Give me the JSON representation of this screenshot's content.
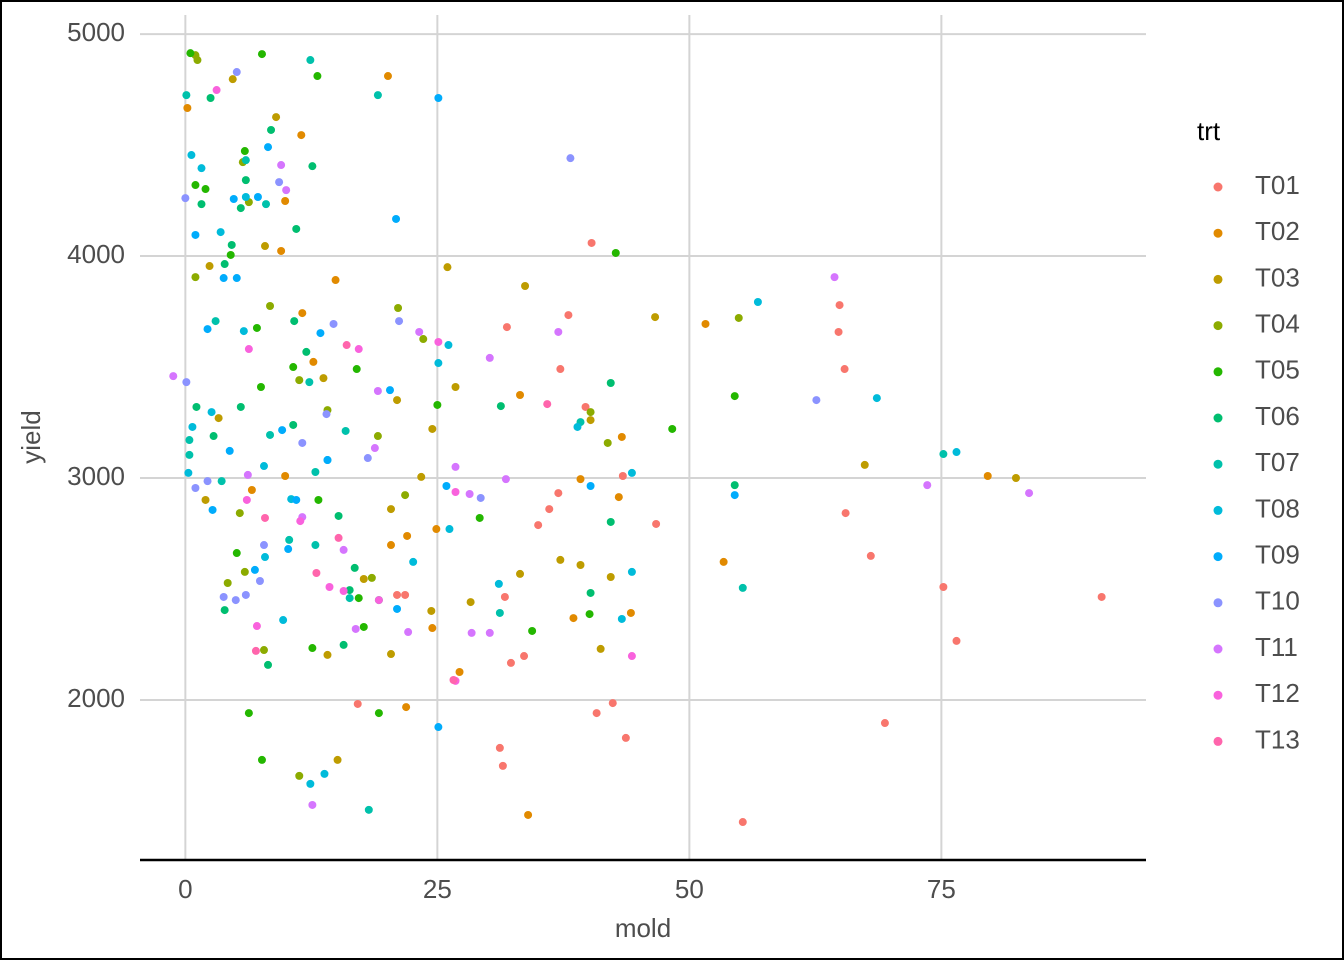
{
  "chart_data": {
    "type": "scatter",
    "x_label": "mold",
    "y_label": "yield",
    "legend_title": "trt",
    "legend_position": "right",
    "grid": true,
    "xlim": [
      -4.5,
      95.3
    ],
    "ylim": [
      1279,
      5086
    ],
    "xticks": [
      0,
      25,
      50,
      75
    ],
    "yticks": [
      2000,
      3000,
      4000,
      5000
    ],
    "series": [
      {
        "name": "T01",
        "color": "#F8766D",
        "x": [
          40.3,
          38,
          31.9,
          37.2,
          39.7,
          43.4,
          37,
          36.1,
          35,
          46.7,
          64.9,
          64.8,
          65.4,
          65.5,
          68,
          75.2,
          76.5,
          90.9,
          69.4,
          55.3,
          31.2,
          31.5,
          33.6,
          32.3,
          43.7,
          42.4,
          40.8,
          21.8,
          21,
          17.1,
          31.7
        ],
        "y": [
          4059,
          3734,
          3680,
          3491,
          3320,
          3009,
          2932,
          2860,
          2788,
          2793,
          3779,
          3658,
          3491,
          2842,
          2649,
          2509,
          2266,
          2464,
          1896,
          1450,
          1784,
          1703,
          2198,
          2167,
          1829,
          1986,
          1941,
          2473,
          2473,
          1982,
          2464
        ]
      },
      {
        "name": "T02",
        "color": "#E18A00",
        "x": [
          0.2,
          20.1,
          11.5,
          9.9,
          9.5,
          14.9,
          11.6,
          51.6,
          33.2,
          43.3,
          22,
          9.9,
          53.4,
          79.6,
          24.9,
          39.2,
          38.5,
          44.2,
          24.5,
          21.9,
          34,
          43,
          6.6,
          12.7,
          27.2,
          20.4
        ],
        "y": [
          4667,
          4811,
          4545,
          4248,
          4023,
          3892,
          3743,
          3694,
          3374,
          3185,
          2739,
          3009,
          2622,
          3009,
          2770,
          2995,
          2369,
          2392,
          2324,
          1968,
          1482,
          2914,
          2946,
          3523,
          2126,
          2698
        ]
      },
      {
        "name": "T03",
        "color": "#BE9C00",
        "x": [
          4.7,
          9,
          2.4,
          33.7,
          46.6,
          26,
          26.8,
          13.7,
          21,
          24.5,
          23.4,
          20.4,
          28.3,
          33.2,
          37.2,
          39.2,
          42.2,
          41.2,
          24.4,
          17.7,
          14.1,
          20.4,
          15.1,
          67.4,
          82.4,
          3.3,
          2,
          7.9,
          40.2
        ],
        "y": [
          4797,
          4626,
          3955,
          3865,
          3725,
          3950,
          3410,
          3450,
          3351,
          3221,
          3005,
          2860,
          2441,
          2568,
          2631,
          2608,
          2554,
          2230,
          2401,
          2545,
          2203,
          2207,
          1730,
          3059,
          3000,
          3270,
          2901,
          4045,
          3261
        ]
      },
      {
        "name": "T04",
        "color": "#8CAB00",
        "x": [
          1,
          1.2,
          5.7,
          6.3,
          8.4,
          21.1,
          23.6,
          40.2,
          54.9,
          41.9,
          11.3,
          14.1,
          19.1,
          21.8,
          18.5,
          5.4,
          5.9,
          4.2,
          7.8,
          11.3,
          1
        ],
        "y": [
          4905,
          4883,
          4423,
          4243,
          3775,
          3766,
          3626,
          3297,
          3721,
          3158,
          3441,
          3306,
          3189,
          2923,
          2550,
          2842,
          2577,
          2527,
          2225,
          1658,
          3905
        ]
      },
      {
        "name": "T05",
        "color": "#24B700",
        "x": [
          0.5,
          7.6,
          13.1,
          5.9,
          2,
          1,
          4.5,
          7.1,
          10.7,
          17,
          25,
          54.5,
          48.3,
          42.7,
          29.2,
          13.2,
          7.5,
          17.2,
          17.7,
          34.4,
          40.1,
          19.2,
          7.6,
          6.3,
          12.6,
          5.1
        ],
        "y": [
          4914,
          4910,
          4811,
          4473,
          4302,
          4320,
          4005,
          3676,
          3500,
          3491,
          3329,
          3369,
          3221,
          4014,
          2820,
          2901,
          3410,
          2459,
          2329,
          2311,
          2387,
          1941,
          1730,
          1941,
          2234,
          2662
        ]
      },
      {
        "name": "T06",
        "color": "#00BE70",
        "x": [
          2.5,
          8.5,
          6,
          5.5,
          11,
          12.6,
          1.6,
          4.6,
          3.9,
          10.8,
          12,
          42.2,
          31.3,
          54.5,
          42.2,
          15.2,
          16.8,
          16.3,
          19.2,
          15.7,
          8.2,
          3.9,
          2.8,
          5.5,
          10.7,
          40.2,
          1.1
        ],
        "y": [
          4712,
          4568,
          4342,
          4216,
          4122,
          4405,
          4234,
          4050,
          3964,
          3707,
          3568,
          3428,
          3324,
          2968,
          2802,
          2829,
          2595,
          2495,
          2450,
          2248,
          2158,
          2405,
          3189,
          3320,
          3239,
          2482,
          3320
        ]
      },
      {
        "name": "T07",
        "color": "#00C1AB",
        "x": [
          0.1,
          12.4,
          19.1,
          8,
          3,
          0.4,
          0.4,
          8.4,
          12.3,
          15.9,
          12.9,
          10.3,
          16.3,
          18.2,
          55.3,
          75.2,
          39.2,
          31.2,
          3.6,
          6,
          12.9
        ],
        "y": [
          4725,
          4883,
          4725,
          4234,
          3707,
          3171,
          3104,
          3194,
          3432,
          3212,
          3027,
          2721,
          2459,
          1505,
          2505,
          3108,
          3252,
          2392,
          2986,
          4432,
          2698
        ]
      },
      {
        "name": "T08",
        "color": "#00BBDA",
        "x": [
          0.6,
          1.6,
          3.5,
          6,
          5.8,
          2.6,
          0.7,
          0.3,
          7.8,
          25.1,
          26.1,
          14.1,
          10.5,
          22.6,
          26.2,
          31.1,
          44.3,
          44.3,
          43.3,
          38.9,
          68.6,
          76.5,
          56.8,
          12.4,
          13.8,
          7.9,
          9.7
        ],
        "y": [
          4455,
          4396,
          4108,
          4266,
          3662,
          3297,
          3230,
          3023,
          3054,
          3518,
          3599,
          3081,
          2905,
          2622,
          2770,
          2523,
          3023,
          2577,
          2365,
          3230,
          3360,
          3117,
          3793,
          1622,
          1667,
          2644,
          2360
        ]
      },
      {
        "name": "T09",
        "color": "#00ACFC",
        "x": [
          25.1,
          20.9,
          1,
          5.1,
          3.8,
          4.8,
          7.2,
          8.2,
          13.4,
          20.3,
          14.1,
          25.9,
          40.2,
          54.5,
          2.7,
          11,
          4.4,
          9.6,
          6.9,
          21,
          25.1,
          10.2,
          2.2
        ],
        "y": [
          4712,
          4167,
          4095,
          3901,
          3901,
          4257,
          4266,
          4491,
          3653,
          3396,
          3081,
          2964,
          2964,
          2923,
          2856,
          2901,
          3122,
          3216,
          2586,
          2410,
          1878,
          2680,
          3671
        ]
      },
      {
        "name": "T10",
        "color": "#8B93FF",
        "x": [
          0,
          5.1,
          38.2,
          21.2,
          14.7,
          14,
          62.6,
          0.1,
          1,
          2.2,
          11.6,
          18.1,
          29.3,
          9.3,
          7.8,
          6,
          5,
          7.4,
          3.8
        ],
        "y": [
          4261,
          4829,
          4441,
          3707,
          3694,
          3288,
          3351,
          3432,
          2955,
          2986,
          3158,
          3090,
          2910,
          4333,
          2698,
          2473,
          2450,
          2536,
          2464
        ]
      },
      {
        "name": "T11",
        "color": "#D575FE",
        "x": [
          64.4,
          83.7,
          73.6,
          30.2,
          37,
          23.2,
          19.1,
          18.8,
          26.8,
          31.8,
          28.2,
          28.4,
          30.2,
          22.1,
          16.9,
          10,
          9.5,
          -1.2,
          12.6,
          6.2,
          11.6,
          15.7
        ],
        "y": [
          3905,
          2932,
          2968,
          3541,
          3658,
          3658,
          3392,
          3135,
          3050,
          2995,
          2928,
          2302,
          2302,
          2306,
          2320,
          4297,
          4410,
          3459,
          1527,
          3014,
          2824,
          2676
        ]
      },
      {
        "name": "T12",
        "color": "#F962DD",
        "x": [
          3.1,
          6.3,
          17.2,
          25.1,
          26.8,
          15.7,
          14.3,
          19.2,
          44.3,
          26.8,
          6.1,
          7.1,
          11.4
        ],
        "y": [
          4748,
          3581,
          3581,
          3613,
          2937,
          2491,
          2509,
          2450,
          2198,
          2086,
          2901,
          2333,
          2806
        ]
      },
      {
        "name": "T13",
        "color": "#FF65AC",
        "x": [
          16,
          35.9,
          26.6,
          7,
          15.2,
          13,
          7.9
        ],
        "y": [
          3599,
          3333,
          2090,
          2221,
          2730,
          2572,
          2820
        ]
      }
    ]
  }
}
